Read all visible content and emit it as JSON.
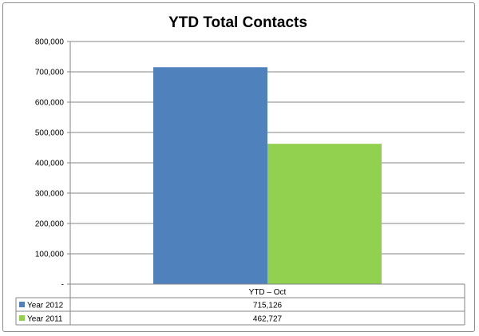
{
  "chart_data": {
    "type": "bar",
    "title": "YTD Total Contacts",
    "categories": [
      "YTD – Oct"
    ],
    "series": [
      {
        "name": "Year 2012",
        "values": [
          715126
        ],
        "value_labels": [
          "715,126"
        ],
        "color": "#4f81bd"
      },
      {
        "name": "Year 2011",
        "values": [
          462727
        ],
        "value_labels": [
          "462,727"
        ],
        "color": "#92d050"
      }
    ],
    "ylim": [
      0,
      800000
    ],
    "y_ticks": [
      {
        "value": 0,
        "label": "-"
      },
      {
        "value": 100000,
        "label": "100,000"
      },
      {
        "value": 200000,
        "label": "200,000"
      },
      {
        "value": 300000,
        "label": "300,000"
      },
      {
        "value": 400000,
        "label": "400,000"
      },
      {
        "value": 500000,
        "label": "500,000"
      },
      {
        "value": 600000,
        "label": "600,000"
      },
      {
        "value": 700000,
        "label": "700,000"
      },
      {
        "value": 800000,
        "label": "800,000"
      }
    ],
    "grid": true,
    "legend": "data-table",
    "gridline_color": "#868686",
    "axis_color": "#868686"
  }
}
